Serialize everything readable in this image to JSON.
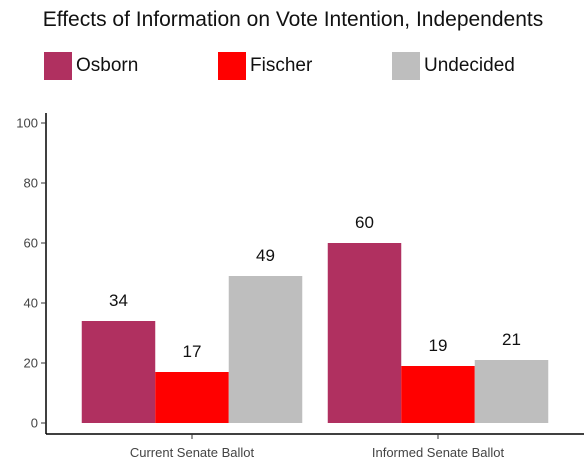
{
  "chart_data": {
    "type": "bar",
    "title": "Effects of Information on Vote Intention, Independents",
    "categories": [
      "Current Senate Ballot",
      "Informed Senate Ballot"
    ],
    "series": [
      {
        "name": "Osborn",
        "color": "#b03060",
        "values": [
          34,
          60
        ]
      },
      {
        "name": "Fischer",
        "color": "#ff0000",
        "values": [
          17,
          19
        ]
      },
      {
        "name": "Undecided",
        "color": "#bebebe",
        "values": [
          49,
          21
        ]
      }
    ],
    "ylim": [
      0,
      100
    ],
    "yticks": [
      0,
      20,
      40,
      60,
      80,
      100
    ],
    "xlabel": "",
    "ylabel": "",
    "legend_position": "top",
    "grid": false
  }
}
